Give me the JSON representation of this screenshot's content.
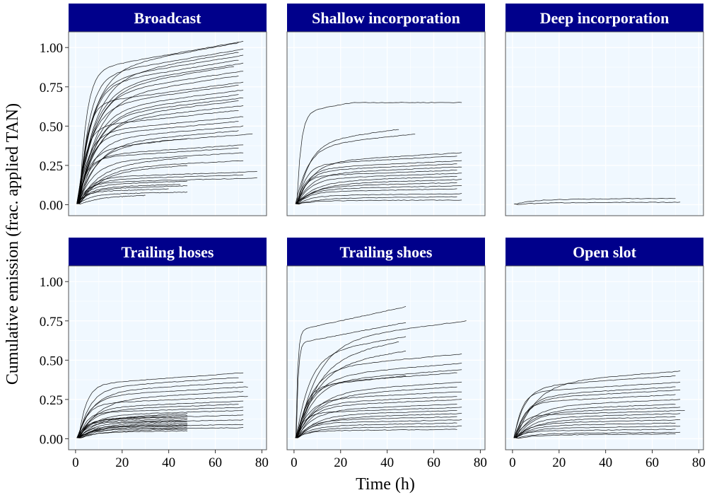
{
  "figure": {
    "ylabel": "Cumulative emission (frac. applied TAN)",
    "xlabel": "Time (h)",
    "x_ticks": [
      "0",
      "20",
      "40",
      "60",
      "80"
    ],
    "y_ticks": [
      "0.00",
      "0.25",
      "0.50",
      "0.75",
      "1.00"
    ],
    "header_color": "#00008b",
    "panel_bg": "#f0f8ff",
    "line_color": "#000000"
  },
  "chart_data": [
    {
      "type": "line",
      "title": "Broadcast",
      "xlim": [
        -3,
        82
      ],
      "ylim": [
        -0.07,
        1.1
      ],
      "grid": true,
      "note": "many trial curves; representative curves listed as final cumulative emission and end time",
      "curves": [
        {
          "end": 1.04,
          "t": 72
        },
        {
          "end": 1.03,
          "t": 70
        },
        {
          "end": 0.99,
          "t": 72
        },
        {
          "end": 0.97,
          "t": 70
        },
        {
          "end": 0.95,
          "t": 72
        },
        {
          "end": 0.92,
          "t": 70
        },
        {
          "end": 0.9,
          "t": 72
        },
        {
          "end": 0.88,
          "t": 68
        },
        {
          "end": 0.85,
          "t": 72
        },
        {
          "end": 0.82,
          "t": 70
        },
        {
          "end": 0.78,
          "t": 72
        },
        {
          "end": 0.76,
          "t": 70
        },
        {
          "end": 0.73,
          "t": 72
        },
        {
          "end": 0.7,
          "t": 70
        },
        {
          "end": 0.68,
          "t": 72
        },
        {
          "end": 0.66,
          "t": 70
        },
        {
          "end": 0.63,
          "t": 72
        },
        {
          "end": 0.6,
          "t": 70
        },
        {
          "end": 0.56,
          "t": 72
        },
        {
          "end": 0.53,
          "t": 70
        },
        {
          "end": 0.5,
          "t": 72
        },
        {
          "end": 0.47,
          "t": 70
        },
        {
          "end": 0.45,
          "t": 76
        },
        {
          "end": 0.42,
          "t": 48
        },
        {
          "end": 0.38,
          "t": 72
        },
        {
          "end": 0.36,
          "t": 70
        },
        {
          "end": 0.33,
          "t": 72
        },
        {
          "end": 0.3,
          "t": 48
        },
        {
          "end": 0.28,
          "t": 72
        },
        {
          "end": 0.25,
          "t": 48
        },
        {
          "end": 0.21,
          "t": 78
        },
        {
          "end": 0.19,
          "t": 72
        },
        {
          "end": 0.17,
          "t": 78
        },
        {
          "end": 0.15,
          "t": 48
        },
        {
          "end": 0.13,
          "t": 45
        },
        {
          "end": 0.12,
          "t": 48
        },
        {
          "end": 0.1,
          "t": 40
        },
        {
          "end": 0.08,
          "t": 48
        },
        {
          "end": 0.06,
          "t": 30
        }
      ]
    },
    {
      "type": "line",
      "title": "Shallow incorporation",
      "xlim": [
        -3,
        82
      ],
      "ylim": [
        -0.07,
        1.1
      ],
      "grid": true,
      "curves": [
        {
          "end": 0.65,
          "t": 72,
          "plateau": true
        },
        {
          "end": 0.48,
          "t": 45
        },
        {
          "end": 0.45,
          "t": 52
        },
        {
          "end": 0.33,
          "t": 72
        },
        {
          "end": 0.31,
          "t": 70
        },
        {
          "end": 0.28,
          "t": 72
        },
        {
          "end": 0.26,
          "t": 70
        },
        {
          "end": 0.24,
          "t": 72
        },
        {
          "end": 0.22,
          "t": 70
        },
        {
          "end": 0.2,
          "t": 72
        },
        {
          "end": 0.18,
          "t": 70
        },
        {
          "end": 0.16,
          "t": 72
        },
        {
          "end": 0.14,
          "t": 70
        },
        {
          "end": 0.12,
          "t": 72
        },
        {
          "end": 0.1,
          "t": 70
        },
        {
          "end": 0.07,
          "t": 72
        },
        {
          "end": 0.05,
          "t": 70
        },
        {
          "end": 0.03,
          "t": 72
        }
      ]
    },
    {
      "type": "line",
      "title": "Deep incorporation",
      "xlim": [
        -3,
        82
      ],
      "ylim": [
        -0.07,
        1.1
      ],
      "grid": true,
      "curves": [
        {
          "end": 0.04,
          "t": 70
        },
        {
          "end": 0.015,
          "t": 72
        }
      ]
    },
    {
      "type": "line",
      "title": "Trailing hoses",
      "xlim": [
        -3,
        82
      ],
      "ylim": [
        -0.07,
        1.1
      ],
      "grid": true,
      "curves": [
        {
          "end": 0.42,
          "t": 72
        },
        {
          "end": 0.39,
          "t": 70
        },
        {
          "end": 0.36,
          "t": 72
        },
        {
          "end": 0.33,
          "t": 74
        },
        {
          "end": 0.3,
          "t": 72
        },
        {
          "end": 0.27,
          "t": 74
        },
        {
          "end": 0.24,
          "t": 72
        },
        {
          "end": 0.22,
          "t": 70
        },
        {
          "end": 0.2,
          "t": 72
        },
        {
          "end": 0.18,
          "t": 72
        },
        {
          "end": 0.16,
          "t": 48
        },
        {
          "end": 0.15,
          "t": 48
        },
        {
          "end": 0.14,
          "t": 48
        },
        {
          "end": 0.13,
          "t": 48
        },
        {
          "end": 0.12,
          "t": 48
        },
        {
          "end": 0.11,
          "t": 48
        },
        {
          "end": 0.1,
          "t": 48
        },
        {
          "end": 0.09,
          "t": 48
        },
        {
          "end": 0.08,
          "t": 48
        },
        {
          "end": 0.07,
          "t": 48
        },
        {
          "end": 0.06,
          "t": 48
        },
        {
          "end": 0.05,
          "t": 48
        },
        {
          "end": 0.15,
          "t": 72
        },
        {
          "end": 0.12,
          "t": 72
        },
        {
          "end": 0.09,
          "t": 72
        },
        {
          "end": 0.07,
          "t": 72
        }
      ]
    },
    {
      "type": "line",
      "title": "Trailing shoes",
      "xlim": [
        -3,
        82
      ],
      "ylim": [
        -0.07,
        1.1
      ],
      "grid": true,
      "curves": [
        {
          "end": 0.84,
          "t": 48,
          "fast": true
        },
        {
          "end": 0.74,
          "t": 48,
          "fast": true
        },
        {
          "end": 0.75,
          "t": 74
        },
        {
          "end": 0.65,
          "t": 48
        },
        {
          "end": 0.62,
          "t": 45
        },
        {
          "end": 0.56,
          "t": 48
        },
        {
          "end": 0.54,
          "t": 72
        },
        {
          "end": 0.48,
          "t": 72
        },
        {
          "end": 0.44,
          "t": 72
        },
        {
          "end": 0.42,
          "t": 70
        },
        {
          "end": 0.4,
          "t": 48
        },
        {
          "end": 0.36,
          "t": 72
        },
        {
          "end": 0.33,
          "t": 70
        },
        {
          "end": 0.3,
          "t": 72
        },
        {
          "end": 0.27,
          "t": 70
        },
        {
          "end": 0.25,
          "t": 72
        },
        {
          "end": 0.22,
          "t": 70
        },
        {
          "end": 0.2,
          "t": 72
        },
        {
          "end": 0.18,
          "t": 70
        },
        {
          "end": 0.16,
          "t": 72
        },
        {
          "end": 0.14,
          "t": 70
        },
        {
          "end": 0.12,
          "t": 72
        },
        {
          "end": 0.1,
          "t": 70
        },
        {
          "end": 0.08,
          "t": 72
        },
        {
          "end": 0.06,
          "t": 70
        }
      ]
    },
    {
      "type": "line",
      "title": "Open slot",
      "xlim": [
        -3,
        82
      ],
      "ylim": [
        -0.07,
        1.1
      ],
      "grid": true,
      "curves": [
        {
          "end": 0.43,
          "t": 72
        },
        {
          "end": 0.4,
          "t": 70
        },
        {
          "end": 0.36,
          "t": 72
        },
        {
          "end": 0.33,
          "t": 70
        },
        {
          "end": 0.31,
          "t": 72
        },
        {
          "end": 0.28,
          "t": 70
        },
        {
          "end": 0.25,
          "t": 72
        },
        {
          "end": 0.22,
          "t": 70
        },
        {
          "end": 0.2,
          "t": 72
        },
        {
          "end": 0.18,
          "t": 74
        },
        {
          "end": 0.16,
          "t": 72
        },
        {
          "end": 0.14,
          "t": 70
        },
        {
          "end": 0.12,
          "t": 72
        },
        {
          "end": 0.1,
          "t": 70
        },
        {
          "end": 0.08,
          "t": 72
        },
        {
          "end": 0.06,
          "t": 70
        },
        {
          "end": 0.04,
          "t": 72
        },
        {
          "end": 0.03,
          "t": 70
        }
      ]
    }
  ]
}
